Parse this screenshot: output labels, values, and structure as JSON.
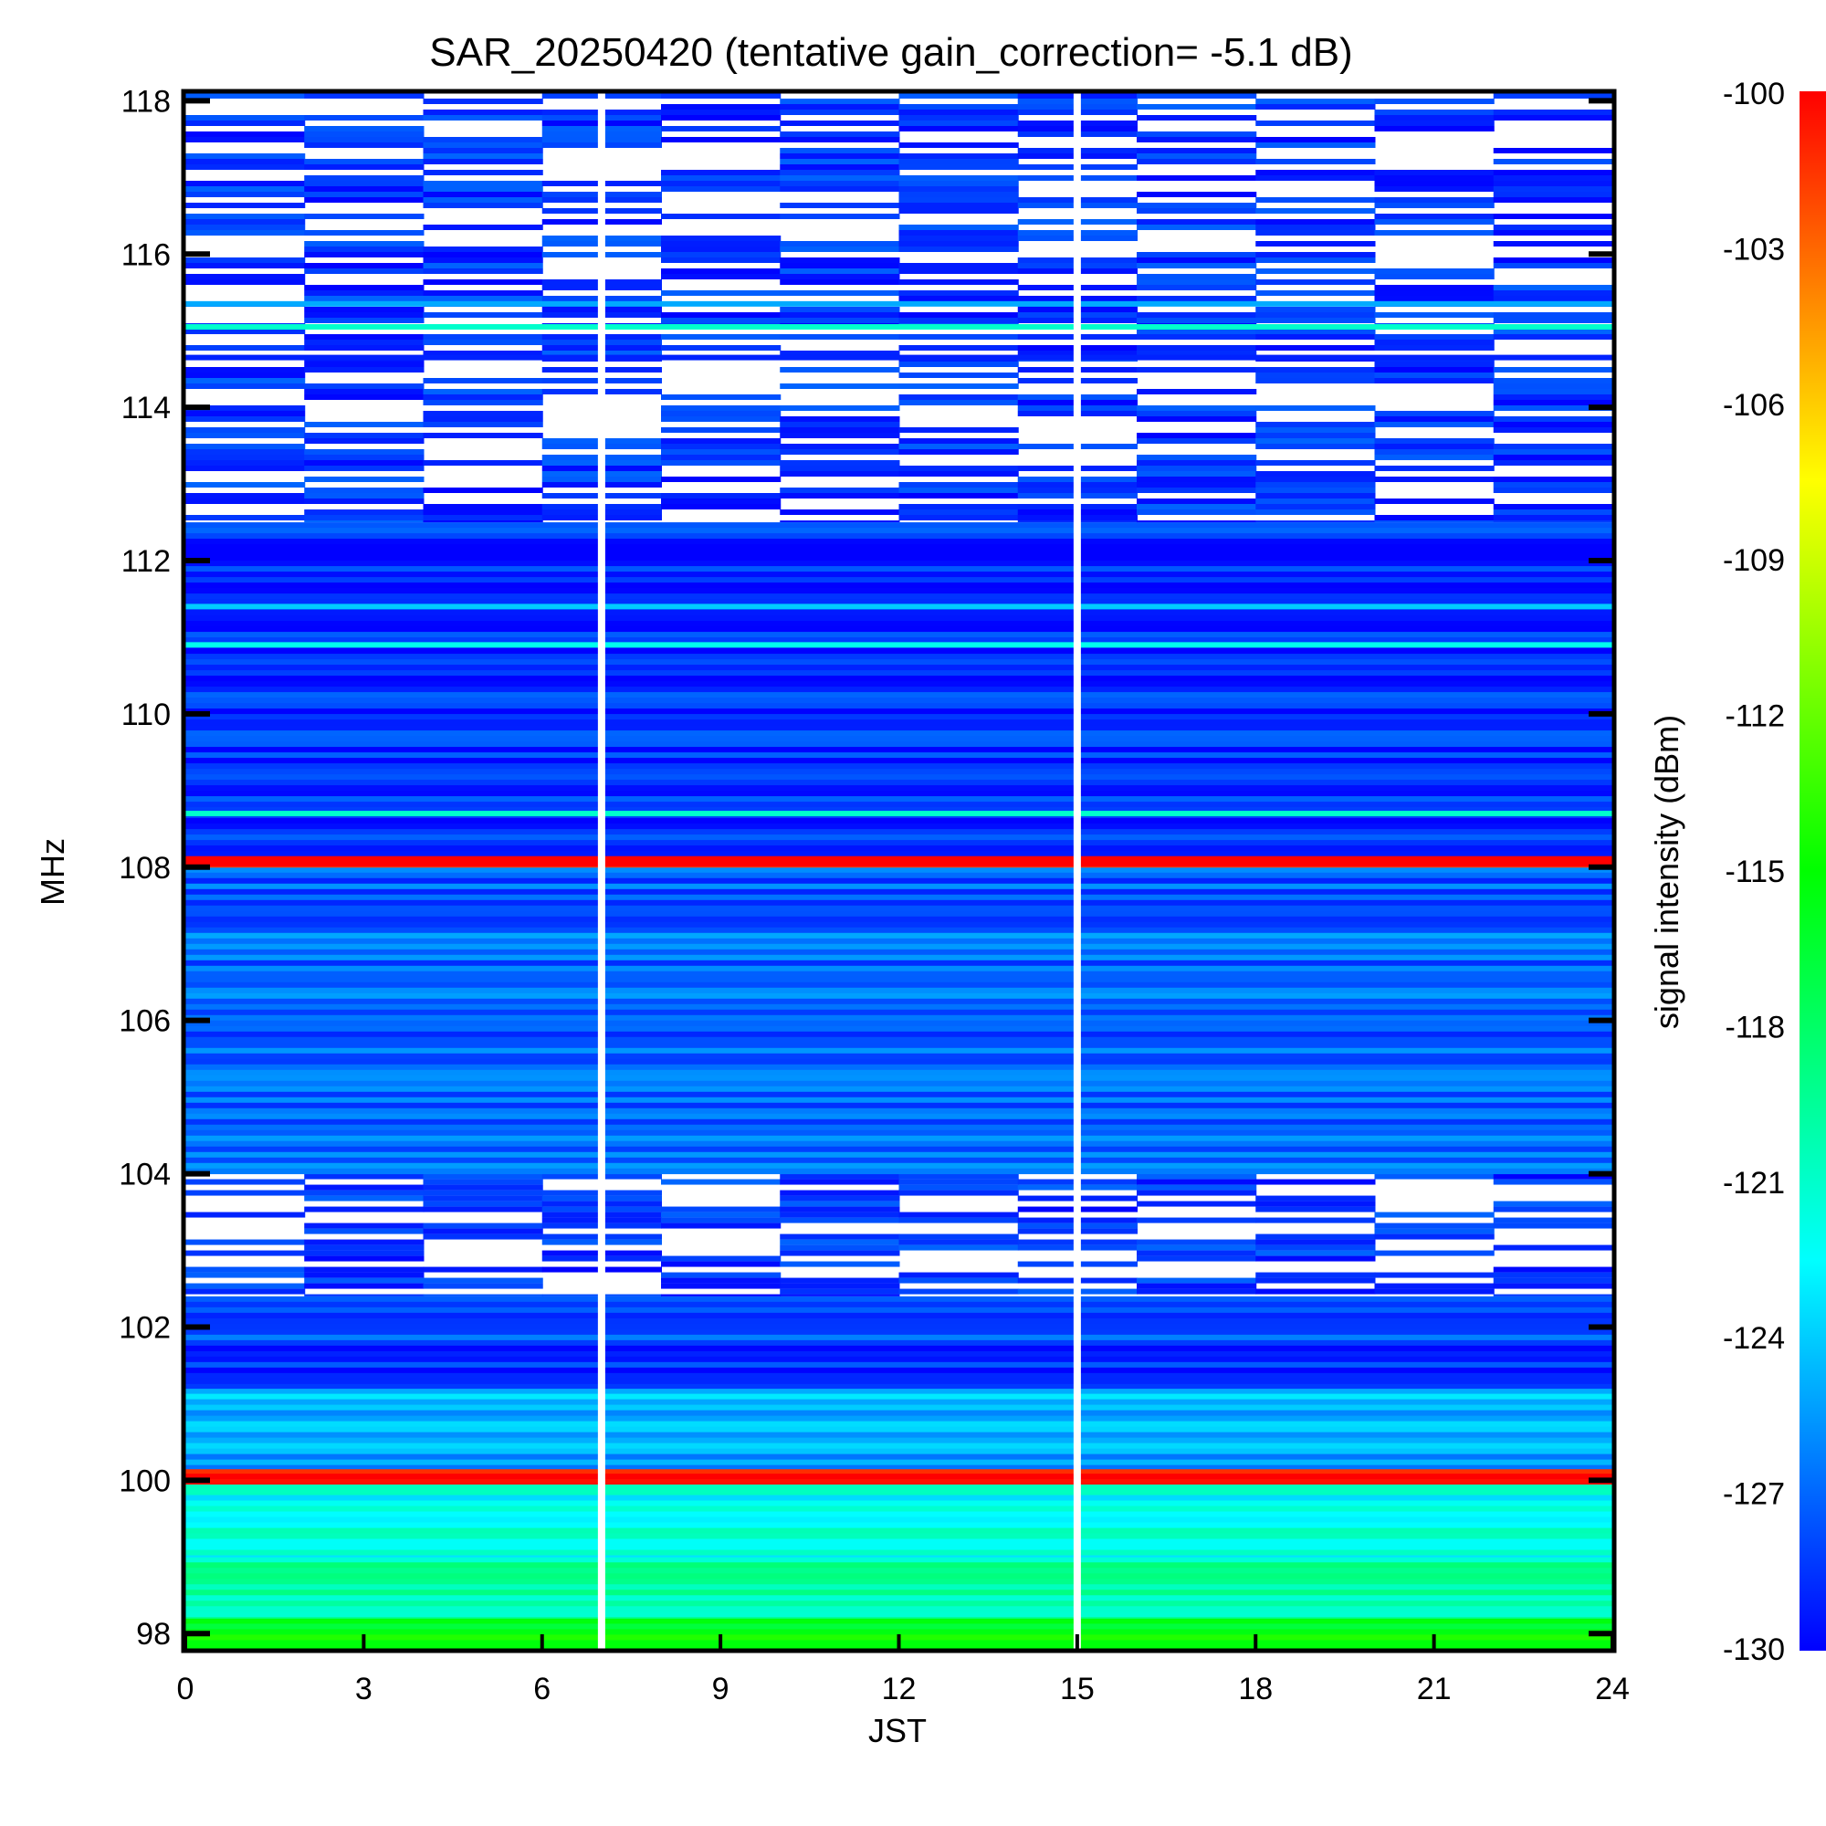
{
  "chart_data": {
    "type": "heatmap",
    "title": "SAR_20250420 (tentative gain_correction= -5.1 dB)",
    "xlabel": "JST",
    "ylabel": "MHz",
    "colorbar_label": "signal intensity (dBm)",
    "xlim": [
      0,
      24
    ],
    "ylim": [
      97.8,
      118.1
    ],
    "x_ticks": [
      "0",
      "3",
      "6",
      "9",
      "12",
      "15",
      "18",
      "21",
      "24"
    ],
    "y_ticks": [
      "98",
      "100",
      "102",
      "104",
      "106",
      "108",
      "110",
      "112",
      "114",
      "116",
      "118"
    ],
    "colorbar_range": [
      -130,
      -100
    ],
    "colorbar_ticks": [
      "-100",
      "-103",
      "-106",
      "-109",
      "-112",
      "-115",
      "-118",
      "-121",
      "-124",
      "-127",
      "-130"
    ],
    "colormap": [
      "#0000ff",
      "#00ffff",
      "#00ff00",
      "#ffff00",
      "#ff0000"
    ],
    "data_gaps_jst": [
      7.0,
      15.0
    ],
    "bands": [
      {
        "mhz": [
          97.8,
          98.2
        ],
        "dbm": -116
      },
      {
        "mhz": [
          98.2,
          99.0
        ],
        "dbm": -120
      },
      {
        "mhz": [
          99.0,
          99.95
        ],
        "dbm": -122
      },
      {
        "mhz": [
          99.95,
          100.15
        ],
        "dbm": -100
      },
      {
        "mhz": [
          100.15,
          101.2
        ],
        "dbm": -125
      },
      {
        "mhz": [
          101.2,
          102.4
        ],
        "dbm": -128
      },
      {
        "mhz": [
          102.4,
          104.0
        ],
        "dbm": -130
      },
      {
        "mhz": [
          104.0,
          108.0
        ],
        "dbm": -127
      },
      {
        "mhz": [
          108.0,
          108.15
        ],
        "dbm": -100
      },
      {
        "mhz": [
          108.15,
          112.5
        ],
        "dbm": -129
      },
      {
        "mhz": [
          112.5,
          118.1
        ],
        "dbm": -130
      }
    ],
    "strong_lines": [
      {
        "mhz": 100.05,
        "dbm": -100
      },
      {
        "mhz": 108.1,
        "dbm": -100
      },
      {
        "mhz": 108.7,
        "dbm": -121
      },
      {
        "mhz": 110.9,
        "dbm": -122
      },
      {
        "mhz": 111.4,
        "dbm": -124
      },
      {
        "mhz": 115.05,
        "dbm": -121
      },
      {
        "mhz": 115.35,
        "dbm": -125
      },
      {
        "mhz": 114.65,
        "dbm": -129
      }
    ]
  }
}
